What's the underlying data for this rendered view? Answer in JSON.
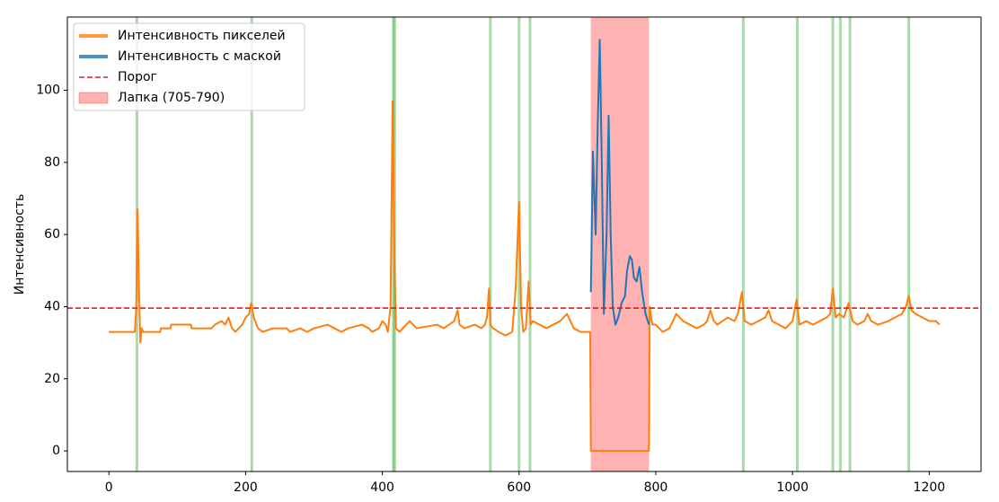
{
  "chart_data": {
    "type": "line",
    "y_label": "Интенсивность",
    "xlim": [
      -60.75,
      1275.75
    ],
    "ylim": [
      -5.7,
      120.3
    ],
    "xticks": [
      0,
      200,
      400,
      600,
      800,
      1000,
      1200
    ],
    "yticks": [
      0,
      20,
      40,
      60,
      80,
      100
    ],
    "legend": "upper left",
    "threshold": {
      "name": "Порог",
      "value": 39.6,
      "color": "#e31a1c"
    },
    "span": {
      "name": "Лапка (705-790)",
      "start": 705,
      "end": 790,
      "color": "#ff0000"
    },
    "markers": {
      "x": [
        41,
        209,
        416,
        418,
        558,
        600,
        616,
        928,
        1007,
        1059,
        1070,
        1084,
        1170
      ],
      "color": "#2ca02c"
    },
    "series": [
      {
        "name": "Интенсивность пикселей",
        "color": "#ff7f0e",
        "x": [
          0,
          38,
          40,
          42,
          44,
          46,
          48,
          50,
          75,
          76,
          90,
          91,
          120,
          121,
          150,
          155,
          165,
          170,
          175,
          180,
          185,
          190,
          195,
          200,
          205,
          208,
          212,
          218,
          225,
          240,
          260,
          265,
          280,
          290,
          300,
          320,
          330,
          340,
          350,
          370,
          380,
          385,
          395,
          400,
          405,
          408,
          412,
          415,
          418,
          420,
          425,
          430,
          440,
          445,
          450,
          480,
          490,
          505,
          510,
          513,
          520,
          535,
          545,
          550,
          553,
          556,
          558,
          562,
          570,
          580,
          590,
          595,
          600,
          603,
          606,
          610,
          614,
          617,
          620,
          630,
          640,
          650,
          660,
          665,
          670,
          675,
          680,
          690,
          700,
          704,
          705,
          790,
          791,
          795,
          800,
          810,
          820,
          825,
          830,
          835,
          840,
          850,
          860,
          870,
          875,
          880,
          885,
          890,
          905,
          915,
          920,
          926,
          930,
          940,
          950,
          960,
          965,
          970,
          980,
          990,
          1000,
          1006,
          1010,
          1020,
          1030,
          1040,
          1050,
          1055,
          1059,
          1063,
          1068,
          1075,
          1082,
          1088,
          1095,
          1105,
          1110,
          1115,
          1125,
          1140,
          1150,
          1160,
          1166,
          1170,
          1174,
          1180,
          1190,
          1200,
          1210,
          1215
        ],
        "values": [
          33,
          33,
          40,
          67,
          45,
          30,
          34,
          33,
          33,
          34,
          34,
          35,
          35,
          34,
          34,
          35,
          36,
          35,
          37,
          34,
          33,
          34,
          35,
          37,
          38,
          41,
          37,
          34,
          33,
          34,
          34,
          33,
          34,
          33,
          34,
          35,
          34,
          33,
          34,
          35,
          34,
          33,
          34,
          36,
          35,
          33,
          40,
          97,
          50,
          34,
          33,
          34,
          36,
          35,
          34,
          35,
          34,
          36,
          39,
          35,
          34,
          35,
          34,
          35,
          37,
          45,
          35,
          34,
          33,
          32,
          33,
          45,
          69,
          40,
          33,
          34,
          47,
          35,
          36,
          35,
          34,
          35,
          36,
          37,
          38,
          36,
          34,
          33,
          33,
          33,
          0,
          0,
          40,
          35,
          35,
          33,
          34,
          36,
          38,
          37,
          36,
          35,
          34,
          35,
          36,
          39,
          36,
          35,
          37,
          36,
          38,
          44,
          36,
          35,
          36,
          37,
          39,
          36,
          35,
          34,
          36,
          42,
          35,
          36,
          35,
          36,
          37,
          38,
          45,
          37,
          38,
          37,
          41,
          36,
          35,
          36,
          38,
          36,
          35,
          36,
          37,
          38,
          40,
          43,
          39,
          38,
          37,
          36,
          36,
          35
        ]
      },
      {
        "name": "Интенсивность с маской",
        "color": "#1f77b4",
        "x": [
          705,
          708,
          712,
          715,
          718,
          721,
          724,
          728,
          731,
          734,
          737,
          741,
          745,
          750,
          755,
          758,
          762,
          765,
          768,
          772,
          776,
          780,
          785,
          790
        ],
        "values": [
          44,
          83,
          60,
          90,
          114,
          80,
          38,
          60,
          93,
          60,
          40,
          35,
          37,
          41,
          43,
          50,
          54,
          53,
          48,
          47,
          51,
          44,
          38,
          35
        ]
      }
    ]
  }
}
